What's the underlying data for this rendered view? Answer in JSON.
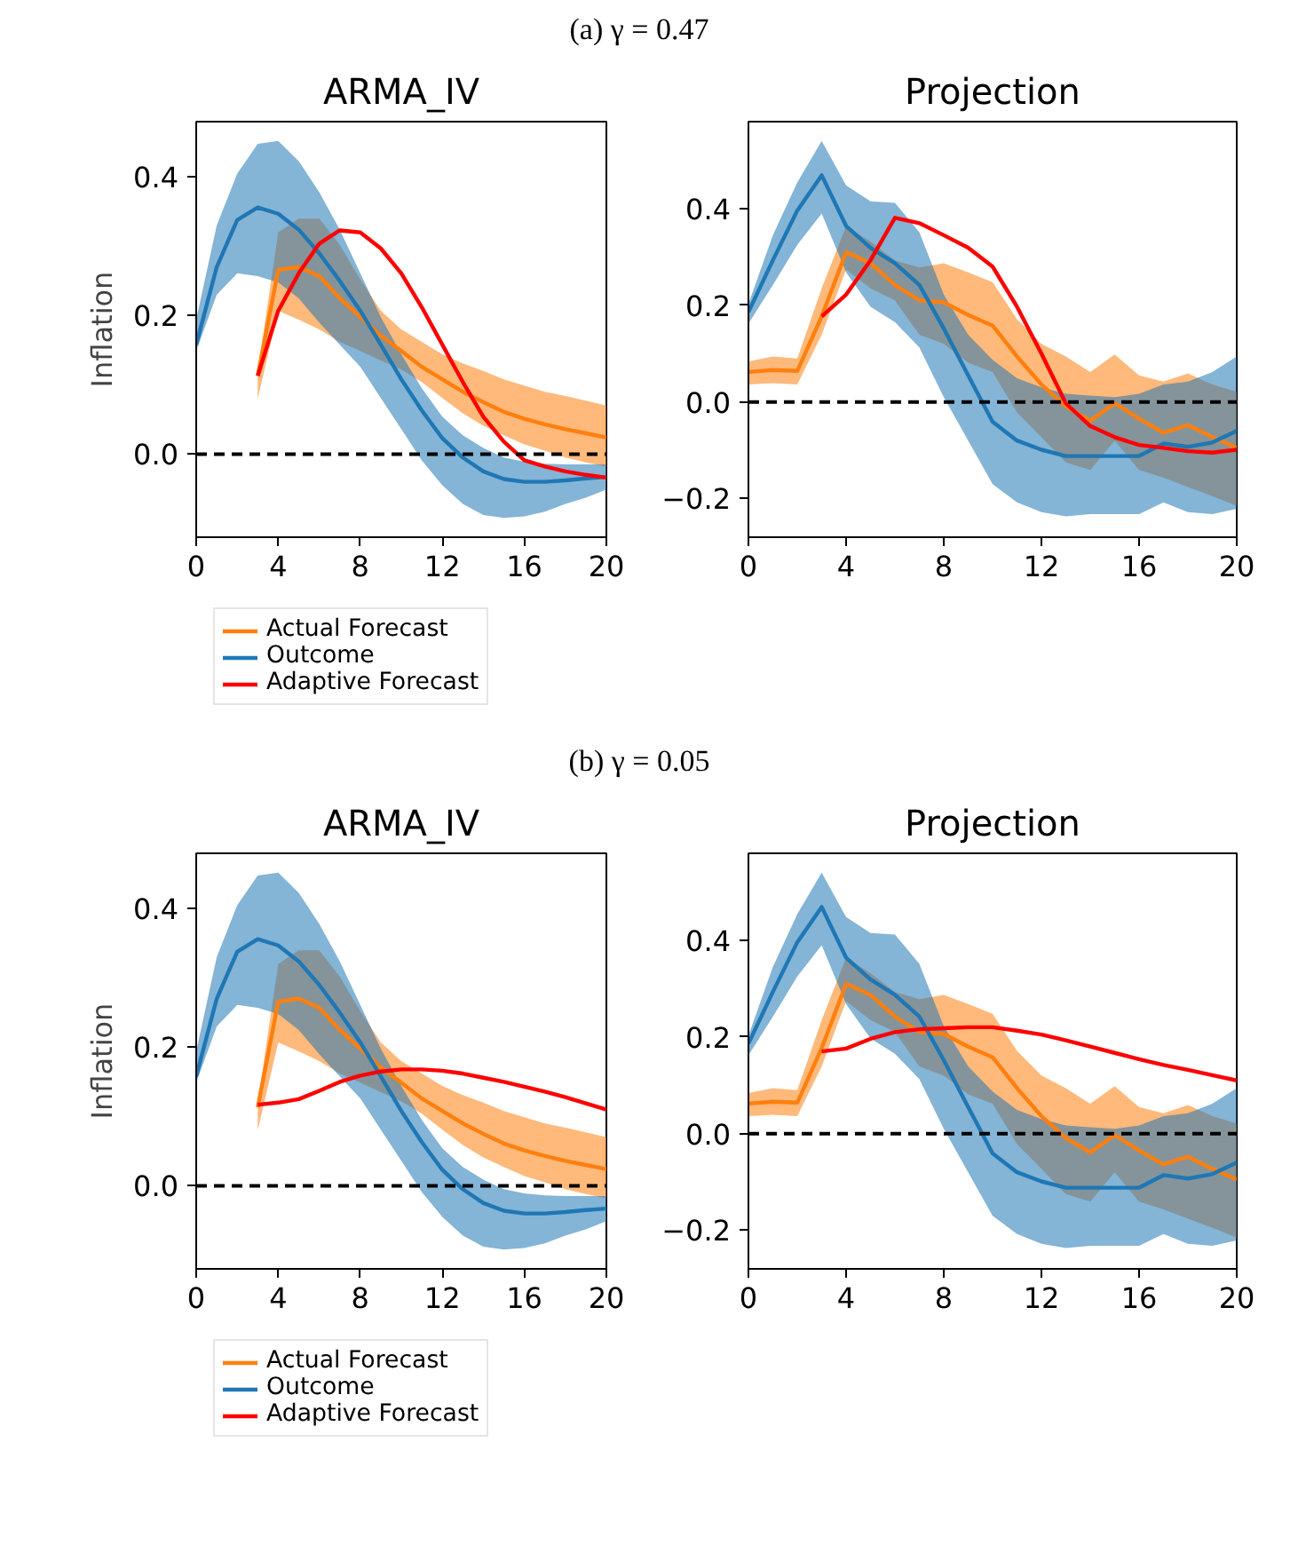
{
  "chart_data": [
    {
      "type": "line",
      "title": "ARMA_IV",
      "annotations": [
        "(a) γ = 0.47"
      ],
      "ylabel": "Inflation",
      "x": [
        0,
        1,
        2,
        3,
        4,
        5,
        6,
        7,
        8,
        9,
        10,
        11,
        12,
        13,
        14,
        15,
        16,
        17,
        18,
        19,
        20
      ],
      "xlim": [
        0,
        20
      ],
      "ylim": [
        -0.12,
        0.48
      ],
      "xticks": [
        0,
        4,
        8,
        12,
        16,
        20
      ],
      "yticks": [
        {
          "value": 0,
          "label": "0.0"
        },
        {
          "value": 0.2,
          "label": "0.2"
        },
        {
          "value": 0.4,
          "label": "0.4"
        }
      ],
      "legend": "bottom",
      "ref_lines": [
        {
          "axis": "y",
          "value": 0,
          "color": "#000000",
          "line_style": "dashed"
        }
      ],
      "series": [
        {
          "name": "Actual Forecast",
          "color": "#ff7f0e",
          "x": [
            3,
            4,
            5,
            6,
            7,
            8,
            9,
            10,
            11,
            12,
            13,
            14,
            15,
            16,
            17,
            18,
            19,
            20
          ],
          "values": [
            0.113,
            0.266,
            0.27,
            0.257,
            0.225,
            0.198,
            0.171,
            0.149,
            0.126,
            0.108,
            0.09,
            0.075,
            0.061,
            0.051,
            0.043,
            0.036,
            0.03,
            0.024
          ],
          "upper": [
            0.12,
            0.32,
            0.34,
            0.34,
            0.302,
            0.252,
            0.207,
            0.18,
            0.162,
            0.144,
            0.131,
            0.12,
            0.108,
            0.099,
            0.09,
            0.084,
            0.077,
            0.07
          ],
          "lower": [
            0.08,
            0.207,
            0.194,
            0.18,
            0.162,
            0.149,
            0.135,
            0.122,
            0.104,
            0.081,
            0.059,
            0.041,
            0.027,
            0.014,
            0.005,
            -0.005,
            -0.012,
            -0.018
          ]
        },
        {
          "name": "Outcome",
          "color": "#1f77b4",
          "values": [
            0.158,
            0.27,
            0.338,
            0.356,
            0.347,
            0.324,
            0.29,
            0.25,
            0.207,
            0.158,
            0.108,
            0.063,
            0.023,
            -0.005,
            -0.025,
            -0.036,
            -0.04,
            -0.04,
            -0.038,
            -0.035,
            -0.033
          ],
          "upper": [
            0.194,
            0.33,
            0.405,
            0.448,
            0.452,
            0.423,
            0.378,
            0.324,
            0.261,
            0.198,
            0.144,
            0.095,
            0.054,
            0.027,
            0.009,
            -0.005,
            -0.011,
            -0.014,
            -0.015,
            -0.015,
            -0.015
          ],
          "lower": [
            0.149,
            0.23,
            0.261,
            0.257,
            0.248,
            0.225,
            0.19,
            0.158,
            0.126,
            0.081,
            0.036,
            -0.009,
            -0.045,
            -0.072,
            -0.088,
            -0.092,
            -0.09,
            -0.083,
            -0.072,
            -0.063,
            -0.051
          ]
        },
        {
          "name": "Adaptive Forecast",
          "color": "#ff0000",
          "x": [
            3,
            4,
            5,
            6,
            7,
            8,
            9,
            10,
            11,
            12,
            13,
            14,
            15,
            16,
            17,
            18,
            19,
            20
          ],
          "values": [
            0.113,
            0.207,
            0.261,
            0.304,
            0.323,
            0.32,
            0.297,
            0.261,
            0.212,
            0.158,
            0.104,
            0.054,
            0.018,
            -0.009,
            -0.018,
            -0.025,
            -0.03,
            -0.034
          ]
        }
      ]
    },
    {
      "type": "line",
      "title": "Projection",
      "x": [
        0,
        1,
        2,
        3,
        4,
        5,
        6,
        7,
        8,
        9,
        10,
        11,
        12,
        13,
        14,
        15,
        16,
        17,
        18,
        19,
        20
      ],
      "xlim": [
        0,
        20
      ],
      "ylim": [
        -0.28,
        0.58
      ],
      "xticks": [
        0,
        4,
        8,
        12,
        16,
        20
      ],
      "yticks": [
        {
          "value": -0.2,
          "label": "−0.2"
        },
        {
          "value": 0,
          "label": "0.0"
        },
        {
          "value": 0.2,
          "label": "0.2"
        },
        {
          "value": 0.4,
          "label": "0.4"
        }
      ],
      "ref_lines": [
        {
          "axis": "y",
          "value": 0,
          "color": "#000000",
          "line_style": "dashed"
        }
      ],
      "series": [
        {
          "color": "#ff7f0e",
          "values": [
            0.062,
            0.066,
            0.064,
            0.177,
            0.31,
            0.287,
            0.242,
            0.21,
            0.206,
            0.18,
            0.158,
            0.094,
            0.036,
            -0.009,
            -0.039,
            -0.003,
            -0.035,
            -0.064,
            -0.048,
            -0.073,
            -0.095
          ],
          "upper": [
            0.084,
            0.094,
            0.09,
            0.235,
            0.364,
            0.332,
            0.293,
            0.278,
            0.287,
            0.268,
            0.248,
            0.171,
            0.12,
            0.094,
            0.062,
            0.098,
            0.055,
            0.042,
            0.059,
            0.036,
            0.021
          ],
          "lower": [
            0.036,
            0.039,
            0.036,
            0.139,
            0.274,
            0.235,
            0.21,
            0.139,
            0.12,
            0.081,
            0.062,
            -0.022,
            -0.073,
            -0.125,
            -0.141,
            -0.08,
            -0.141,
            -0.157,
            -0.176,
            -0.195,
            -0.215
          ]
        },
        {
          "color": "#1f77b4",
          "values": [
            0.186,
            0.293,
            0.396,
            0.469,
            0.364,
            0.319,
            0.287,
            0.242,
            0.152,
            0.055,
            -0.041,
            -0.08,
            -0.099,
            -0.112,
            -0.112,
            -0.112,
            -0.112,
            -0.086,
            -0.093,
            -0.084,
            -0.06
          ],
          "upper": [
            0.203,
            0.345,
            0.454,
            0.54,
            0.448,
            0.415,
            0.412,
            0.351,
            0.222,
            0.139,
            0.087,
            0.049,
            0.03,
            0.017,
            0.013,
            0.01,
            0.017,
            0.036,
            0.042,
            0.062,
            0.094
          ],
          "lower": [
            0.162,
            0.242,
            0.325,
            0.39,
            0.268,
            0.197,
            0.165,
            0.113,
            0.01,
            -0.08,
            -0.17,
            -0.208,
            -0.228,
            -0.237,
            -0.232,
            -0.232,
            -0.232,
            -0.208,
            -0.228,
            -0.232,
            -0.221
          ]
        },
        {
          "color": "#ff0000",
          "x": [
            3,
            4,
            5,
            6,
            7,
            8,
            9,
            10,
            11,
            12,
            13,
            14,
            15,
            16,
            17,
            18,
            19,
            20
          ],
          "values": [
            0.177,
            0.222,
            0.293,
            0.381,
            0.37,
            0.345,
            0.319,
            0.28,
            0.197,
            0.1,
            -0.003,
            -0.05,
            -0.073,
            -0.089,
            -0.095,
            -0.102,
            -0.105,
            -0.099
          ]
        }
      ]
    },
    {
      "type": "line",
      "title": "ARMA_IV",
      "annotations": [
        "(b) γ = 0.05"
      ],
      "ylabel": "Inflation",
      "x": [
        0,
        1,
        2,
        3,
        4,
        5,
        6,
        7,
        8,
        9,
        10,
        11,
        12,
        13,
        14,
        15,
        16,
        17,
        18,
        19,
        20
      ],
      "xlim": [
        0,
        20
      ],
      "ylim": [
        -0.12,
        0.48
      ],
      "xticks": [
        0,
        4,
        8,
        12,
        16,
        20
      ],
      "yticks": [
        {
          "value": 0,
          "label": "0.0"
        },
        {
          "value": 0.2,
          "label": "0.2"
        },
        {
          "value": 0.4,
          "label": "0.4"
        }
      ],
      "legend": "bottom",
      "ref_lines": [
        {
          "axis": "y",
          "value": 0,
          "color": "#000000",
          "line_style": "dashed"
        }
      ],
      "series": [
        {
          "name": "Actual Forecast",
          "color": "#ff7f0e",
          "x": [
            3,
            4,
            5,
            6,
            7,
            8,
            9,
            10,
            11,
            12,
            13,
            14,
            15,
            16,
            17,
            18,
            19,
            20
          ],
          "values": [
            0.113,
            0.266,
            0.27,
            0.257,
            0.225,
            0.198,
            0.171,
            0.149,
            0.126,
            0.108,
            0.09,
            0.075,
            0.061,
            0.051,
            0.043,
            0.036,
            0.03,
            0.024
          ],
          "upper": [
            0.12,
            0.32,
            0.34,
            0.34,
            0.302,
            0.252,
            0.207,
            0.18,
            0.162,
            0.144,
            0.131,
            0.12,
            0.108,
            0.099,
            0.09,
            0.084,
            0.077,
            0.07
          ],
          "lower": [
            0.08,
            0.207,
            0.194,
            0.18,
            0.162,
            0.149,
            0.135,
            0.122,
            0.104,
            0.081,
            0.059,
            0.041,
            0.027,
            0.014,
            0.005,
            -0.005,
            -0.012,
            -0.018
          ]
        },
        {
          "name": "Outcome",
          "color": "#1f77b4",
          "values": [
            0.158,
            0.27,
            0.338,
            0.356,
            0.347,
            0.324,
            0.29,
            0.25,
            0.207,
            0.158,
            0.108,
            0.063,
            0.023,
            -0.005,
            -0.025,
            -0.036,
            -0.04,
            -0.04,
            -0.038,
            -0.035,
            -0.033
          ],
          "upper": [
            0.194,
            0.33,
            0.405,
            0.448,
            0.452,
            0.423,
            0.378,
            0.324,
            0.261,
            0.198,
            0.144,
            0.095,
            0.054,
            0.027,
            0.009,
            -0.005,
            -0.011,
            -0.014,
            -0.015,
            -0.015,
            -0.015
          ],
          "lower": [
            0.149,
            0.23,
            0.261,
            0.257,
            0.248,
            0.225,
            0.19,
            0.158,
            0.126,
            0.081,
            0.036,
            -0.009,
            -0.045,
            -0.072,
            -0.088,
            -0.092,
            -0.09,
            -0.083,
            -0.072,
            -0.063,
            -0.051
          ]
        },
        {
          "name": "Adaptive Forecast",
          "color": "#ff0000",
          "x": [
            3,
            4,
            5,
            6,
            7,
            8,
            9,
            10,
            11,
            12,
            13,
            14,
            15,
            16,
            17,
            18,
            19,
            20
          ],
          "values": [
            0.117,
            0.12,
            0.125,
            0.137,
            0.15,
            0.159,
            0.165,
            0.168,
            0.168,
            0.166,
            0.162,
            0.156,
            0.15,
            0.143,
            0.136,
            0.128,
            0.119,
            0.11
          ]
        }
      ]
    },
    {
      "type": "line",
      "title": "Projection",
      "x": [
        0,
        1,
        2,
        3,
        4,
        5,
        6,
        7,
        8,
        9,
        10,
        11,
        12,
        13,
        14,
        15,
        16,
        17,
        18,
        19,
        20
      ],
      "xlim": [
        0,
        20
      ],
      "ylim": [
        -0.28,
        0.58
      ],
      "xticks": [
        0,
        4,
        8,
        12,
        16,
        20
      ],
      "yticks": [
        {
          "value": -0.2,
          "label": "−0.2"
        },
        {
          "value": 0,
          "label": "0.0"
        },
        {
          "value": 0.2,
          "label": "0.2"
        },
        {
          "value": 0.4,
          "label": "0.4"
        }
      ],
      "ref_lines": [
        {
          "axis": "y",
          "value": 0,
          "color": "#000000",
          "line_style": "dashed"
        }
      ],
      "series": [
        {
          "color": "#ff7f0e",
          "values": [
            0.062,
            0.066,
            0.064,
            0.177,
            0.31,
            0.287,
            0.242,
            0.21,
            0.206,
            0.18,
            0.158,
            0.094,
            0.036,
            -0.009,
            -0.039,
            -0.003,
            -0.035,
            -0.064,
            -0.048,
            -0.073,
            -0.095
          ],
          "upper": [
            0.084,
            0.094,
            0.09,
            0.235,
            0.364,
            0.332,
            0.293,
            0.278,
            0.287,
            0.268,
            0.248,
            0.171,
            0.12,
            0.094,
            0.062,
            0.098,
            0.055,
            0.042,
            0.059,
            0.036,
            0.021
          ],
          "lower": [
            0.036,
            0.039,
            0.036,
            0.139,
            0.274,
            0.235,
            0.21,
            0.139,
            0.12,
            0.081,
            0.062,
            -0.022,
            -0.073,
            -0.125,
            -0.141,
            -0.08,
            -0.141,
            -0.157,
            -0.176,
            -0.195,
            -0.215
          ]
        },
        {
          "color": "#1f77b4",
          "values": [
            0.186,
            0.293,
            0.396,
            0.469,
            0.364,
            0.319,
            0.287,
            0.242,
            0.152,
            0.055,
            -0.041,
            -0.08,
            -0.099,
            -0.112,
            -0.112,
            -0.112,
            -0.112,
            -0.086,
            -0.093,
            -0.084,
            -0.06
          ],
          "upper": [
            0.203,
            0.345,
            0.454,
            0.54,
            0.448,
            0.415,
            0.412,
            0.351,
            0.222,
            0.139,
            0.087,
            0.049,
            0.03,
            0.017,
            0.013,
            0.01,
            0.017,
            0.036,
            0.042,
            0.062,
            0.094
          ],
          "lower": [
            0.162,
            0.242,
            0.325,
            0.39,
            0.268,
            0.197,
            0.165,
            0.113,
            0.01,
            -0.08,
            -0.17,
            -0.208,
            -0.228,
            -0.237,
            -0.232,
            -0.232,
            -0.232,
            -0.208,
            -0.228,
            -0.232,
            -0.221
          ]
        },
        {
          "color": "#ff0000",
          "x": [
            3,
            4,
            5,
            6,
            7,
            8,
            9,
            10,
            11,
            12,
            13,
            14,
            15,
            16,
            17,
            18,
            19,
            20
          ],
          "values": [
            0.17,
            0.176,
            0.196,
            0.21,
            0.216,
            0.218,
            0.22,
            0.22,
            0.213,
            0.205,
            0.193,
            0.18,
            0.167,
            0.154,
            0.142,
            0.132,
            0.121,
            0.11
          ]
        }
      ]
    }
  ]
}
